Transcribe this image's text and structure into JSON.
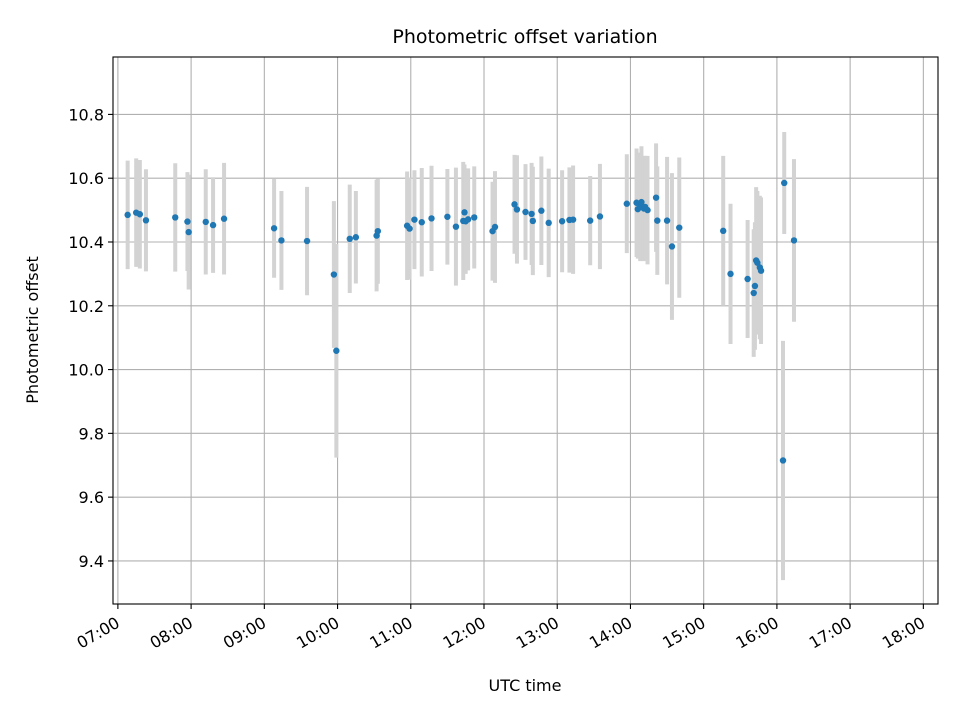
{
  "chart_data": {
    "type": "scatter",
    "title": "Photometric offset variation",
    "xlabel": "UTC time",
    "ylabel": "Photometric offset",
    "grid": true,
    "xlim": [
      "06:56",
      "18:12"
    ],
    "ylim": [
      9.265,
      10.98
    ],
    "x_ticks": [
      "07:00",
      "08:00",
      "09:00",
      "10:00",
      "11:00",
      "12:00",
      "13:00",
      "14:00",
      "15:00",
      "16:00",
      "17:00",
      "18:00"
    ],
    "y_ticks": [
      "9.4",
      "9.6",
      "9.8",
      "10.0",
      "10.2",
      "10.4",
      "10.6",
      "10.8"
    ],
    "colors": {
      "point": "#1f77b4",
      "error_bar": "#d3d3d3",
      "grid": "#b0b0b0"
    },
    "series": [
      {
        "x": [
          "07:08",
          "07:15",
          "07:18",
          "07:23",
          "07:47",
          "07:57",
          "07:58",
          "08:12",
          "08:18",
          "08:27",
          "09:08",
          "09:14",
          "09:35",
          "09:57",
          "09:59",
          "10:10",
          "10:15",
          "10:32",
          "10:33",
          "10:57",
          "10:59",
          "11:03",
          "11:09",
          "11:17",
          "11:30",
          "11:37",
          "11:43",
          "11:44",
          "11:45",
          "11:47",
          "11:52",
          "12:07",
          "12:09",
          "12:25",
          "12:27",
          "12:34",
          "12:39",
          "12:40",
          "12:47",
          "12:53",
          "13:04",
          "13:10",
          "13:13",
          "13:27",
          "13:35",
          "13:57",
          "14:05",
          "14:06",
          "14:08",
          "14:09",
          "14:11",
          "14:12",
          "14:14",
          "14:21",
          "14:22",
          "14:30",
          "14:34",
          "14:40",
          "15:16",
          "15:22",
          "15:36",
          "15:41",
          "15:42",
          "15:43",
          "15:44",
          "15:46",
          "15:47",
          "16:05",
          "16:06",
          "16:14"
        ],
        "y": [
          10.485,
          10.492,
          10.487,
          10.468,
          10.477,
          10.464,
          10.431,
          10.463,
          10.453,
          10.473,
          10.443,
          10.405,
          10.403,
          10.298,
          10.059,
          10.41,
          10.415,
          10.42,
          10.434,
          10.451,
          10.442,
          10.47,
          10.462,
          10.474,
          10.479,
          10.448,
          10.466,
          10.493,
          10.465,
          10.471,
          10.477,
          10.434,
          10.447,
          10.518,
          10.502,
          10.494,
          10.488,
          10.466,
          10.498,
          10.46,
          10.465,
          10.469,
          10.47,
          10.467,
          10.48,
          10.52,
          10.523,
          10.503,
          10.51,
          10.525,
          10.505,
          10.51,
          10.5,
          10.539,
          10.467,
          10.467,
          10.386,
          10.445,
          10.435,
          10.3,
          10.284,
          10.24,
          10.262,
          10.342,
          10.335,
          10.32,
          10.31,
          9.715,
          10.585,
          10.405
        ],
        "yerr": [
          0.17,
          0.17,
          0.17,
          0.16,
          0.17,
          0.155,
          0.18,
          0.165,
          0.15,
          0.175,
          0.155,
          0.155,
          0.17,
          0.23,
          0.335,
          0.17,
          0.145,
          0.175,
          0.165,
          0.17,
          0.16,
          0.155,
          0.17,
          0.165,
          0.15,
          0.185,
          0.185,
          0.15,
          0.165,
          0.16,
          0.16,
          0.155,
          0.175,
          0.155,
          0.17,
          0.15,
          0.16,
          0.17,
          0.17,
          0.17,
          0.16,
          0.165,
          0.17,
          0.14,
          0.165,
          0.155,
          0.17,
          0.155,
          0.17,
          0.175,
          0.165,
          0.16,
          0.17,
          0.17,
          0.17,
          0.2,
          0.23,
          0.22,
          0.235,
          0.22,
          0.185,
          0.2,
          0.2,
          0.23,
          0.225,
          0.225,
          0.23,
          0.375,
          0.16,
          0.255
        ]
      }
    ]
  }
}
